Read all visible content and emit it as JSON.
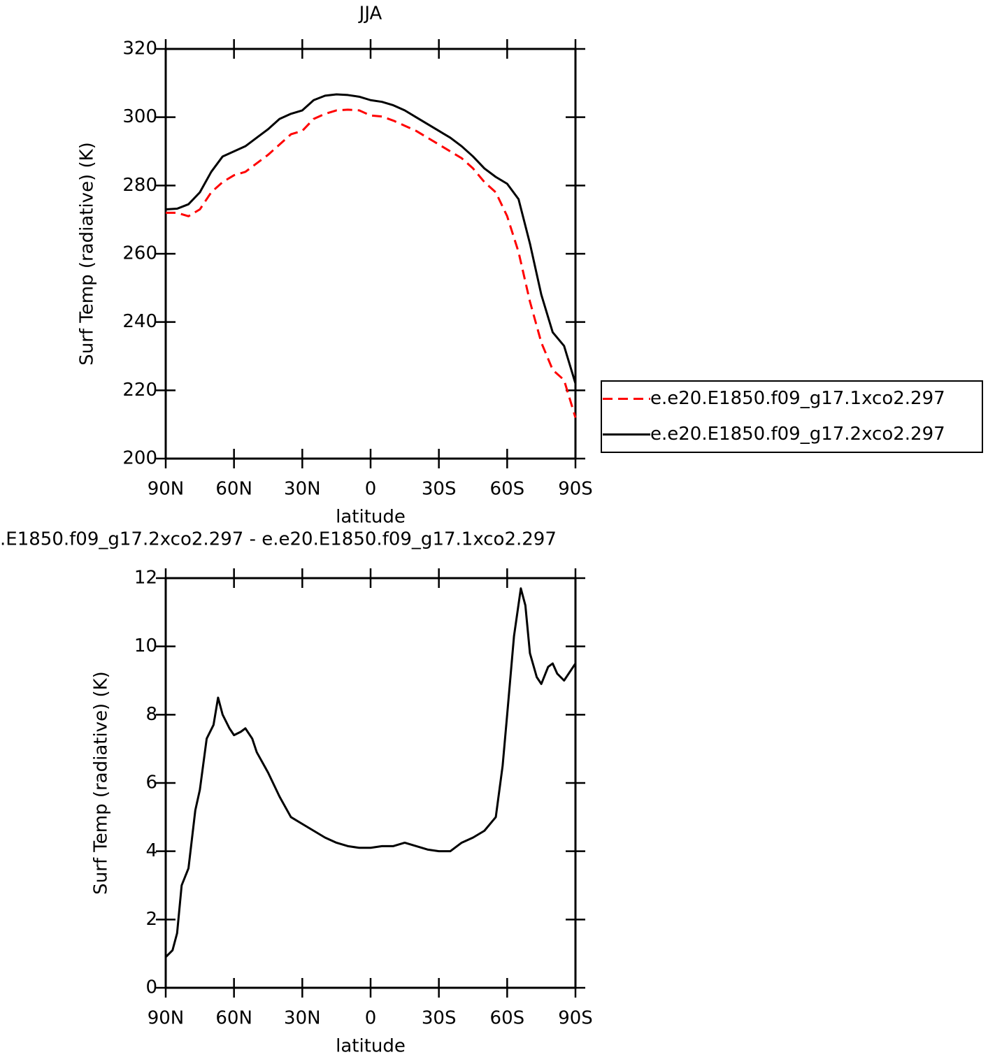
{
  "chart_data": [
    {
      "type": "line",
      "title": "JJA",
      "x_label": "latitude",
      "y_label": "Surf Temp (radiative) (K)",
      "x": [
        90,
        85,
        80,
        75,
        70,
        65,
        60,
        55,
        50,
        45,
        40,
        35,
        30,
        25,
        20,
        15,
        10,
        5,
        0,
        -5,
        -10,
        -15,
        -20,
        -25,
        -30,
        -35,
        -40,
        -45,
        -50,
        -55,
        -60,
        -65,
        -70,
        -75,
        -80,
        -85,
        -90
      ],
      "series": [
        {
          "name": "e.e20.E1850.f09_g17.1xco2.297",
          "color": "#ff0000",
          "dashed": true,
          "values": [
            272,
            272,
            271,
            273,
            278,
            281,
            283,
            284,
            286.5,
            289,
            292,
            295,
            296,
            299.5,
            301,
            302,
            302.2,
            302,
            300.5,
            300.2,
            299,
            297.5,
            296,
            294,
            292,
            290,
            288,
            285,
            281,
            278,
            271,
            260.5,
            246,
            234,
            226,
            223,
            212
          ]
        },
        {
          "name": "e.e20.E1850.f09_g17.2xco2.297",
          "color": "#000000",
          "dashed": false,
          "values": [
            273,
            273.2,
            274.5,
            278,
            284,
            288.5,
            290,
            291.5,
            294,
            296.5,
            299.5,
            301,
            302,
            305,
            306.3,
            306.7,
            306.5,
            306,
            305,
            304.5,
            303.5,
            302,
            300,
            298,
            296,
            294,
            291.5,
            288.5,
            285,
            282.5,
            280.5,
            276,
            263,
            248,
            237,
            233,
            222
          ]
        }
      ],
      "xlim": [
        90,
        -90
      ],
      "xticks": [
        {
          "value": 90,
          "label": "90N"
        },
        {
          "value": 60,
          "label": "60N"
        },
        {
          "value": 30,
          "label": "30N"
        },
        0,
        {
          "value": -30,
          "label": "30S"
        },
        {
          "value": -60,
          "label": "60S"
        },
        {
          "value": -90,
          "label": "90S"
        }
      ],
      "ylim": [
        200,
        320
      ],
      "yticks": [
        200,
        220,
        240,
        260,
        280,
        300,
        320
      ],
      "legend": "right"
    },
    {
      "type": "line",
      "title": ".E1850.f09_g17.2xco2.297 - e.e20.E1850.f09_g17.1xco2.297",
      "x_label": "latitude",
      "y_label": "Surf Temp (radiative) (K)",
      "x": [
        90,
        87,
        85,
        83,
        80,
        77,
        75,
        72,
        69,
        67,
        65,
        62,
        60,
        57,
        55,
        52,
        50,
        45,
        40,
        35,
        30,
        25,
        20,
        15,
        10,
        5,
        0,
        -5,
        -10,
        -15,
        -20,
        -25,
        -30,
        -35,
        -40,
        -45,
        -50,
        -55,
        -58,
        -60,
        -63,
        -66,
        -68,
        -70,
        -73,
        -75,
        -78,
        -80,
        -82,
        -85,
        -88,
        -90
      ],
      "series": [
        {
          "color": "#000000",
          "dashed": false,
          "values": [
            0.9,
            1.1,
            1.6,
            3,
            3.5,
            5.2,
            5.8,
            7.3,
            7.7,
            8.5,
            8.0,
            7.6,
            7.4,
            7.5,
            7.6,
            7.3,
            6.9,
            6.3,
            5.6,
            5.0,
            4.8,
            4.6,
            4.4,
            4.25,
            4.15,
            4.1,
            4.1,
            4.15,
            4.15,
            4.25,
            4.15,
            4.05,
            4.0,
            4.0,
            4.25,
            4.4,
            4.6,
            5.0,
            6.5,
            8.0,
            10.3,
            11.7,
            11.2,
            9.8,
            9.1,
            8.9,
            9.4,
            9.5,
            9.2,
            9.0,
            9.3,
            9.5
          ]
        }
      ],
      "xlim": [
        90,
        -90
      ],
      "xticks": [
        {
          "value": 90,
          "label": "90N"
        },
        {
          "value": 60,
          "label": "60N"
        },
        {
          "value": 30,
          "label": "30N"
        },
        0,
        {
          "value": -30,
          "label": "30S"
        },
        {
          "value": -60,
          "label": "60S"
        },
        {
          "value": -90,
          "label": "90S"
        }
      ],
      "ylim": [
        0,
        12
      ],
      "yticks": [
        0,
        2,
        4,
        6,
        8,
        10,
        12
      ]
    }
  ]
}
